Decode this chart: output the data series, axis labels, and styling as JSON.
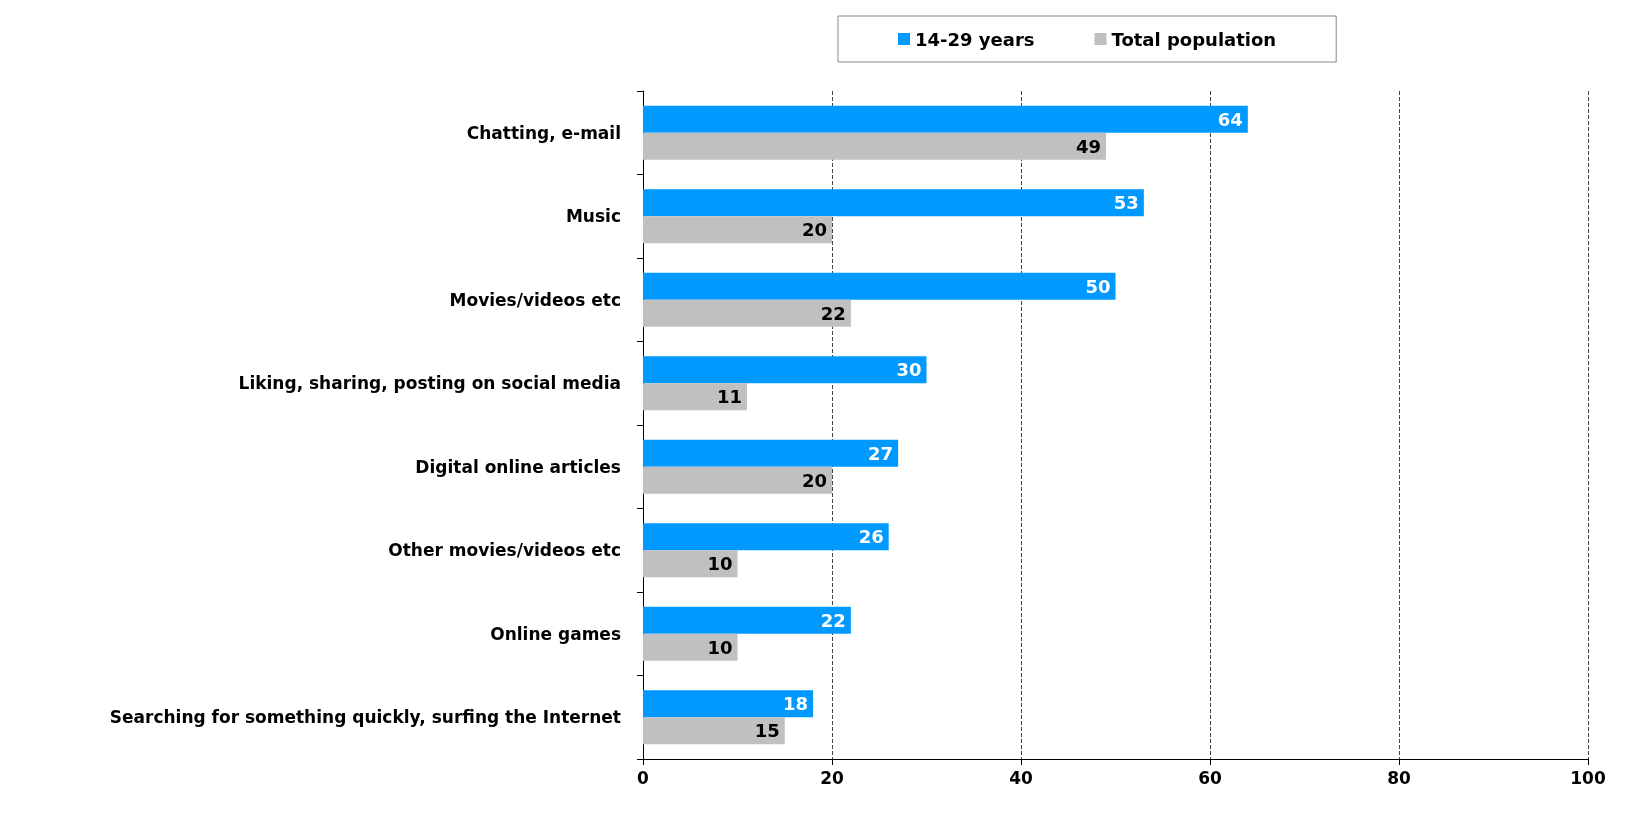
{
  "chart_data": {
    "type": "bar",
    "orientation": "horizontal",
    "categories": [
      "Chatting, e-mail",
      "Music",
      "Movies/videos etc",
      "Liking, sharing, posting on social media",
      "Digital online articles",
      "Other movies/videos etc",
      "Online games",
      "Searching for something quickly, surfing the Internet"
    ],
    "series": [
      {
        "name": "14-29 years",
        "color": "#0099ff",
        "values": [
          64,
          53,
          50,
          30,
          27,
          26,
          22,
          18
        ]
      },
      {
        "name": "Total population",
        "color": "#c0c0c0",
        "values": [
          49,
          20,
          22,
          11,
          20,
          10,
          10,
          15
        ]
      }
    ],
    "xlim": [
      0,
      100
    ],
    "xticks": [
      0,
      20,
      40,
      60,
      80,
      100
    ],
    "grid": "x",
    "legend": "top",
    "data_labels": true
  }
}
